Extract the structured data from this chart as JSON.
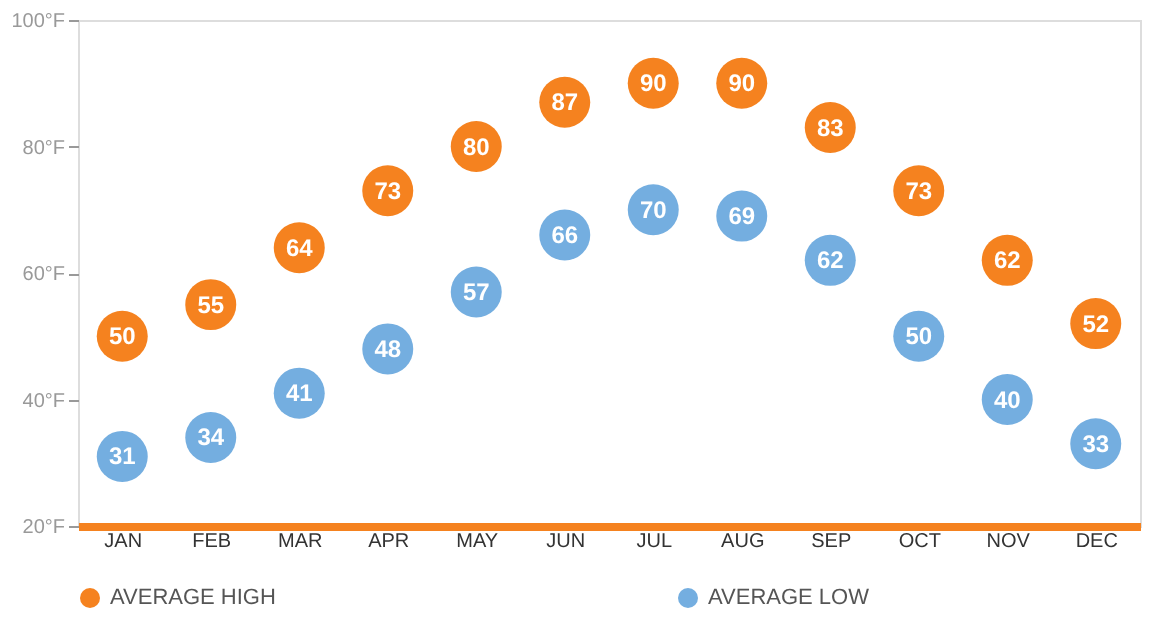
{
  "chart_data": {
    "type": "scatter",
    "categories": [
      "JAN",
      "FEB",
      "MAR",
      "APR",
      "MAY",
      "JUN",
      "JUL",
      "AUG",
      "SEP",
      "OCT",
      "NOV",
      "DEC"
    ],
    "series": [
      {
        "name": "AVERAGE HIGH",
        "color": "#f5821f",
        "values": [
          50,
          55,
          64,
          73,
          80,
          87,
          90,
          90,
          83,
          73,
          62,
          52
        ]
      },
      {
        "name": "AVERAGE LOW",
        "color": "#74aee0",
        "values": [
          31,
          34,
          41,
          48,
          57,
          66,
          70,
          69,
          62,
          50,
          40,
          33
        ]
      }
    ],
    "ylim": [
      20,
      100
    ],
    "yticks": [
      {
        "value": 20,
        "label": "20°F"
      },
      {
        "value": 40,
        "label": "40°F"
      },
      {
        "value": 60,
        "label": "60°F"
      },
      {
        "value": 80,
        "label": "80°F"
      },
      {
        "value": 100,
        "label": "100°F"
      }
    ],
    "marker": "circle",
    "data_labels": true,
    "legend": "bottom",
    "grid": false
  }
}
